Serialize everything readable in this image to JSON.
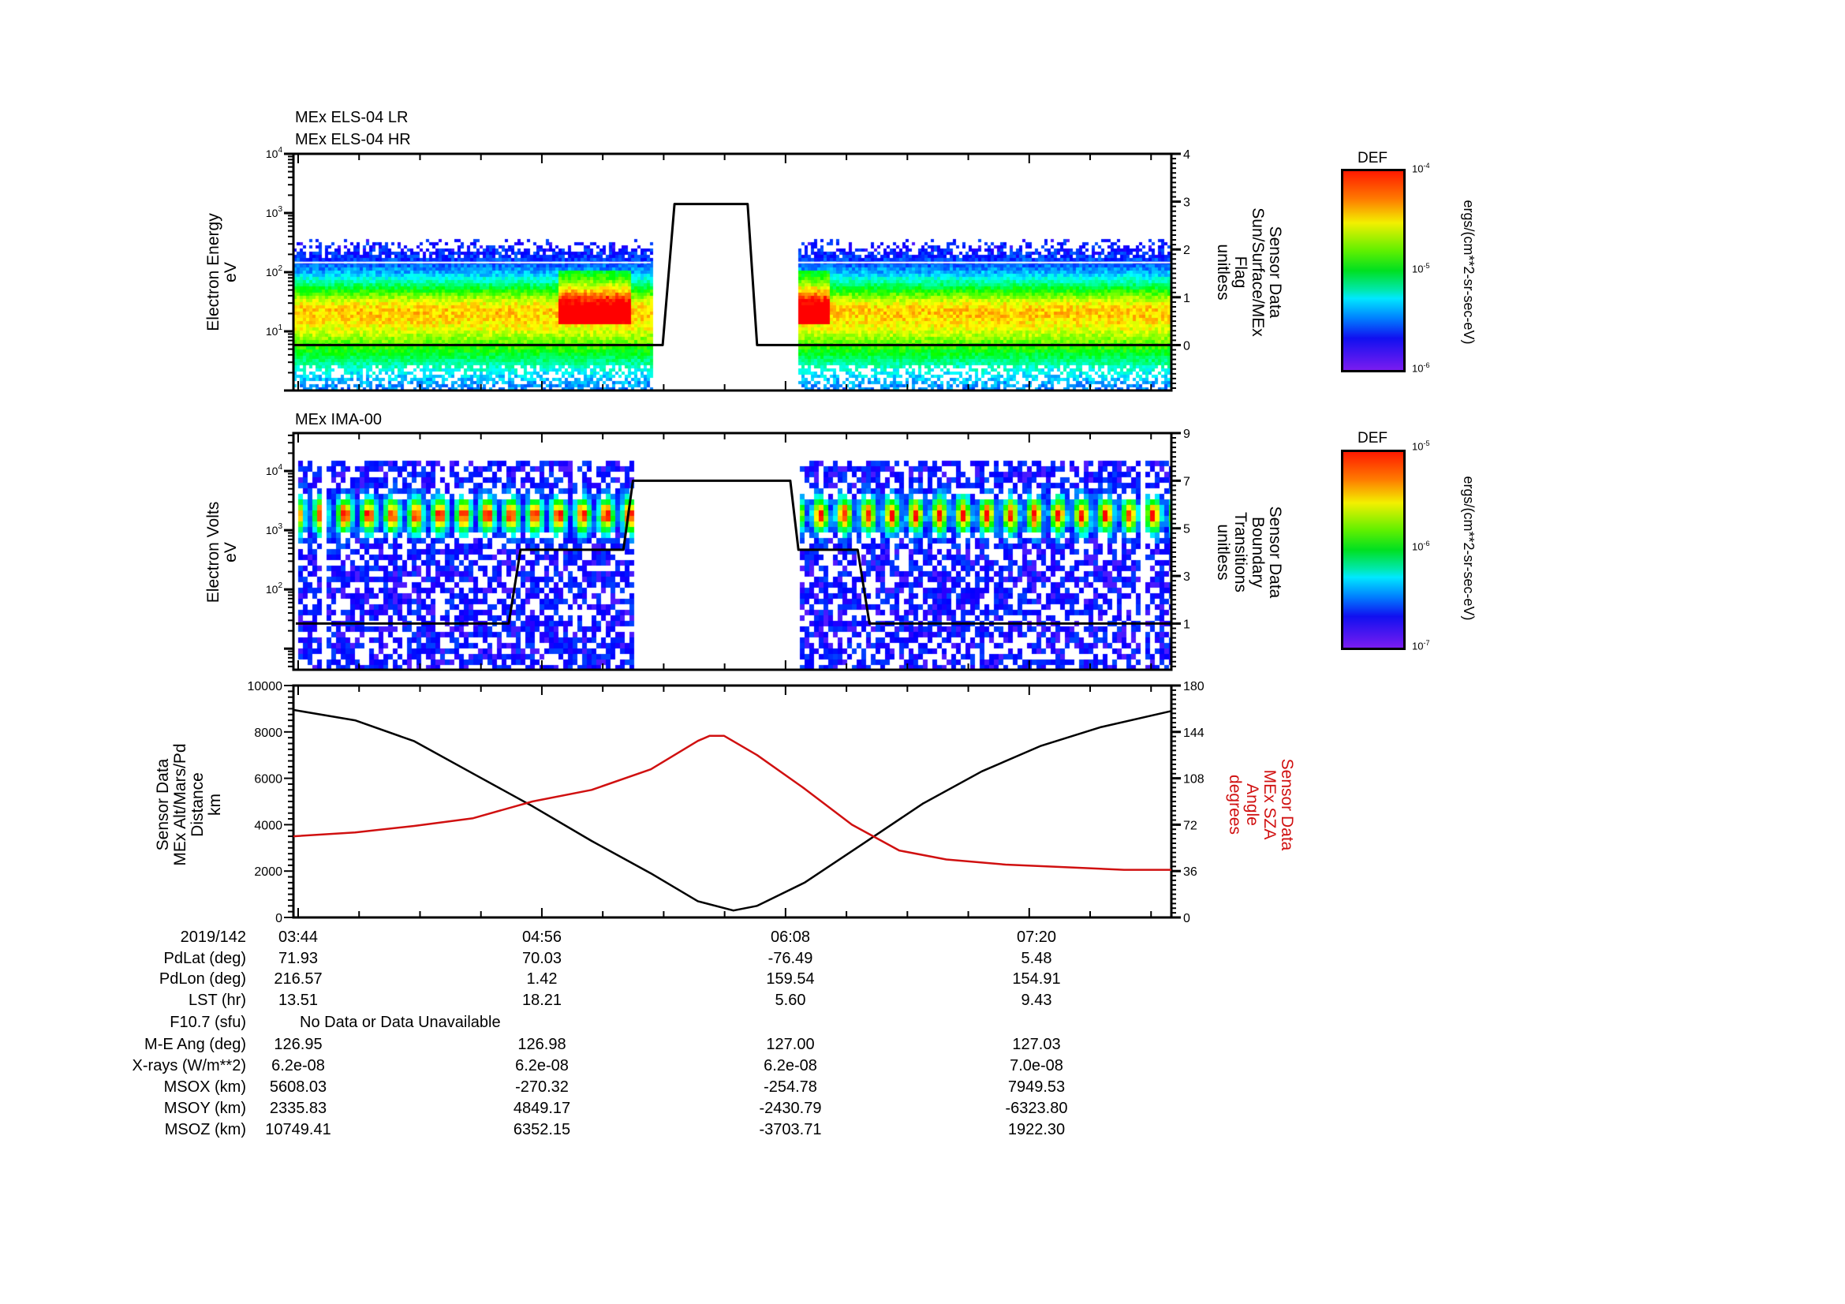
{
  "panel_titles": {
    "els_line1": "MEx ELS-04 LR",
    "els_line2": "MEx ELS-04 HR",
    "ima": "MEx IMA-00"
  },
  "axis_labels": {
    "els_left": [
      "Electron Energy",
      "eV"
    ],
    "els_right": [
      "Sensor Data",
      "Sun/Surface/MEx",
      "Flag",
      "unitless"
    ],
    "ima_left": [
      "Electron Volts",
      "eV"
    ],
    "ima_right": [
      "Sensor Data",
      "Boundary",
      "Transitions",
      "unitless"
    ],
    "pos_left": [
      "Sensor Data",
      "MEx Alt/Mars/Pd",
      "Distance",
      "km"
    ],
    "pos_right": [
      "Sensor Data",
      "MEx SZA",
      "Angle",
      "degrees"
    ]
  },
  "colorbars": [
    {
      "title": "DEF",
      "units": "ergs/(cm**2-sr-sec-eV)",
      "ticks": [
        "-4",
        "-5",
        "-6"
      ]
    },
    {
      "title": "DEF",
      "units": "ergs/(cm**2-sr-sec-eV)",
      "ticks": [
        "-5",
        "-6",
        "-7"
      ]
    }
  ],
  "colors": {
    "alt_line": "#000000",
    "sza_line": "#d01010",
    "flag_line": "#000000"
  },
  "chart_data": [
    {
      "type": "heatmap",
      "title": "MEx ELS-04 LR / MEx ELS-04 HR",
      "ylabel": "Electron Energy (eV)",
      "yscale": "log",
      "ylim": [
        1,
        10000
      ],
      "ytick_exponents": [
        "1",
        "2",
        "3",
        "4"
      ],
      "zlim": [
        1e-06,
        0.0001
      ],
      "xlim_minutes_of_day": [
        222.6,
        482
      ],
      "data_intervals": [
        [
          222.6,
          328.2
        ],
        [
          371.5,
          482
        ]
      ],
      "band_peak_eV": 25,
      "y2label": "Sensor Data Sun/Surface/MEx Flag (unitless)",
      "y2lim": [
        -0.95,
        4
      ],
      "y2ticks": [
        "0",
        "1",
        "2",
        "3",
        "4"
      ],
      "flag_series": {
        "x": [
          222.6,
          331.7,
          335.2,
          356.8,
          359.6,
          482
        ],
        "y": [
          0,
          0,
          2.95,
          2.95,
          0,
          0
        ]
      }
    },
    {
      "type": "heatmap",
      "title": "MEx IMA-00",
      "ylabel": "Electron Volts (eV)",
      "yscale": "log",
      "ylim": [
        4.4,
        43650
      ],
      "ytick_exponents": [
        "2",
        "3",
        "4"
      ],
      "zlim": [
        1e-07,
        1e-05
      ],
      "xlim_minutes_of_day": [
        222.6,
        482
      ],
      "data_intervals": [
        [
          223.3,
          229.6
        ],
        [
          231.8,
          322.7
        ],
        [
          371.5,
          472.4
        ],
        [
          473.5,
          482
        ]
      ],
      "band_eV": [
        1000,
        5000
      ],
      "y2label": "Sensor Data Boundary Transitions (unitless)",
      "y2lim": [
        -0.94,
        9
      ],
      "y2ticks": [
        "1",
        "3",
        "5",
        "7",
        "9"
      ],
      "flag_series": {
        "x": [
          223.3,
          286.2,
          289.7,
          320.1,
          322.9,
          369.4,
          371.8,
          389.3,
          392.8,
          482
        ],
        "y": [
          1,
          1,
          4.1,
          4.1,
          7,
          7,
          4.1,
          4.1,
          1,
          1
        ]
      }
    },
    {
      "type": "line",
      "xlim_minutes_of_day": [
        222.6,
        482
      ],
      "ylim": [
        0,
        10000
      ],
      "yticks": [
        "0",
        "2000",
        "4000",
        "6000",
        "8000",
        "10000"
      ],
      "y2lim": [
        0,
        180
      ],
      "y2ticks": [
        "0",
        "36",
        "72",
        "108",
        "144",
        "180"
      ],
      "series": [
        {
          "name": "MEx Alt/Mars/Pd Distance (km)",
          "axis": "left",
          "x": [
            222.6,
            240.8,
            258.3,
            275.7,
            293.2,
            310.7,
            328.2,
            342.1,
            352.6,
            359.6,
            373.6,
            391.1,
            408.5,
            426.0,
            443.5,
            461.0,
            482.0
          ],
          "y": [
            8950,
            8500,
            7600,
            6200,
            4800,
            3300,
            1900,
            700,
            300,
            500,
            1500,
            3200,
            4900,
            6300,
            7400,
            8200,
            8900
          ]
        },
        {
          "name": "MEx SZA Angle (degrees)",
          "axis": "right",
          "x": [
            222.6,
            240.8,
            258.3,
            275.7,
            293.2,
            310.7,
            328.2,
            342.1,
            345.6,
            349.8,
            359.6,
            373.6,
            387.6,
            401.6,
            415.5,
            433.0,
            450.5,
            468.0,
            482.0
          ],
          "y": [
            63,
            66,
            71,
            77,
            90,
            99,
            115,
            137,
            141,
            141,
            126,
            100,
            72,
            52,
            45,
            41,
            39,
            37,
            37
          ]
        }
      ]
    }
  ],
  "table": {
    "date": "2019/142",
    "times": [
      "03:44",
      "04:56",
      "06:08",
      "07:20"
    ],
    "rows": [
      {
        "label": "PdLat (deg)",
        "values": [
          "71.93",
          "70.03",
          "-76.49",
          "5.48"
        ]
      },
      {
        "label": "PdLon (deg)",
        "values": [
          "216.57",
          "1.42",
          "159.54",
          "154.91"
        ]
      },
      {
        "label": "LST (hr)",
        "values": [
          "13.51",
          "18.21",
          "5.60",
          "9.43"
        ]
      },
      {
        "label": "F10.7 (sfu)",
        "note": "No Data or Data Unavailable"
      },
      {
        "label": "M-E Ang (deg)",
        "values": [
          "126.95",
          "126.98",
          "127.00",
          "127.03"
        ]
      },
      {
        "label": "X-rays (W/m**2)",
        "values": [
          "6.2e-08",
          "6.2e-08",
          "6.2e-08",
          "7.0e-08"
        ]
      },
      {
        "label": "MSOX (km)",
        "values": [
          "5608.03",
          "-270.32",
          "-254.78",
          "7949.53"
        ]
      },
      {
        "label": "MSOY (km)",
        "values": [
          "2335.83",
          "4849.17",
          "-2430.79",
          "-6323.80"
        ]
      },
      {
        "label": "MSOZ (km)",
        "values": [
          "10749.41",
          "6352.15",
          "-3703.71",
          "1922.30"
        ]
      }
    ]
  }
}
